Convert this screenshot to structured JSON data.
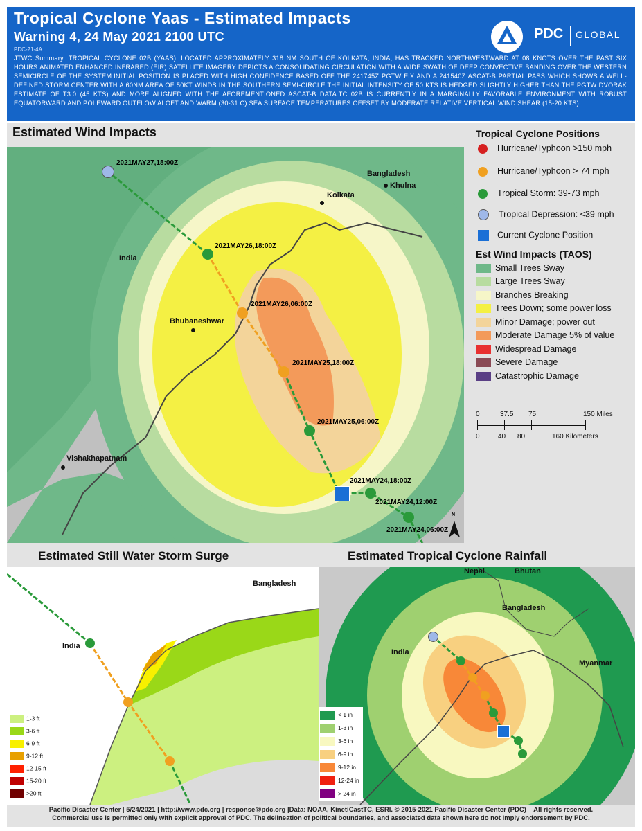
{
  "header": {
    "title": "Tropical Cyclone Yaas - Estimated Impacts",
    "subtitle": "Warning 4, 24 May 2021 2100 UTC",
    "doc_id": "PDC-21-4A",
    "summary": "JTWC Summary: TROPICAL CYCLONE 02B (YAAS), LOCATED APPROXIMATELY 318 NM SOUTH OF KOLKATA, INDIA, HAS TRACKED NORTHWESTWARD AT 08 KNOTS OVER THE PAST SIX HOURS.ANIMATED ENHANCED INFRARED (EIR) SATELLITE IMAGERY DEPICTS A CONSOLIDATING CIRCULATION WITH A WIDE SWATH OF DEEP CONVECTIVE BANDING OVER THE WESTERN SEMICIRCLE OF THE SYSTEM.INITIAL POSITION IS PLACED WITH HIGH CONFIDENCE BASED OFF THE 241745Z PGTW FIX AND A 241540Z ASCAT-B PARTIAL PASS WHICH SHOWS A WELL-DEFINED STORM CENTER WITH A 60NM AREA OF 50KT WINDS IN THE SOUTHERN SEMI-CIRCLE.THE INITIAL INTENSITY OF 50 KTS IS HEDGED SLIGHTLY HIGHER THAN THE PGTW DVORAK ESTIMATE OF T3.0 (45 KTS) AND MORE ALIGNED WITH THE AFOREMENTIONED ASCAT-B DATA.TC 02B IS CURRENTLY IN A MARGINALLY FAVORABLE ENVIRONMENT WITH ROBUST EQUATORWARD AND POLEWARD OUTFLOW ALOFT AND WARM (30-31 C) SEA SURFACE TEMPERATURES OFFSET BY MODERATE RELATIVE VERTICAL WIND SHEAR (15-20 KTS).",
    "logo": {
      "name": "PDC",
      "suffix": "GLOBAL"
    }
  },
  "wind_map": {
    "title": "Estimated Wind Impacts",
    "places": [
      "Bangladesh",
      "Khulna",
      "Kolkata",
      "India",
      "Bhubaneshwar",
      "Vishakhapatnam"
    ],
    "track_labels": [
      "2021MAY27,18:00Z",
      "2021MAY26,18:00Z",
      "2021MAY26,06:00Z",
      "2021MAY25,18:00Z",
      "2021MAY25,06:00Z",
      "2021MAY24,18:00Z",
      "2021MAY24,12:00Z",
      "2021MAY24,06:00Z"
    ],
    "north": "N"
  },
  "legend": {
    "positions_title": "Tropical Cyclone Positions",
    "positions": [
      {
        "label": "Hurricane/Typhoon >150 mph",
        "color": "#d62020"
      },
      {
        "label": "Hurricane/Typhoon > 74 mph",
        "color": "#f0a020"
      },
      {
        "label": "Tropical Storm: 39-73 mph",
        "color": "#2a9a3a"
      },
      {
        "label": "Tropical Depression: <39 mph",
        "color": "#9fb8e8"
      },
      {
        "label": "Current Cyclone Position",
        "color": "#1a6fd6"
      }
    ],
    "wind_title": "Est Wind Impacts (TAOS)",
    "wind": [
      {
        "label": "Small Trees Sway",
        "color": "#6fb889"
      },
      {
        "label": "Large Trees Sway",
        "color": "#b8dca0"
      },
      {
        "label": "Branches Breaking",
        "color": "#f6f6c8"
      },
      {
        "label": "Trees Down; some power loss",
        "color": "#f4f044"
      },
      {
        "label": "Minor Damage; power out",
        "color": "#f3d49a"
      },
      {
        "label": "Moderate Damage 5% of value",
        "color": "#f39a5a"
      },
      {
        "label": "Widespread Damage",
        "color": "#e83030"
      },
      {
        "label": "Severe Damage",
        "color": "#8a4a55"
      },
      {
        "label": "Catastrophic Damage",
        "color": "#5a3f85"
      }
    ],
    "scale_miles": [
      "0",
      "37.5",
      "75",
      "150 Miles"
    ],
    "scale_km": [
      "0",
      "40",
      "80",
      "160 Kilometers"
    ]
  },
  "surge_map": {
    "title": "Estimated Still Water Storm Surge",
    "places": [
      "Bangladesh",
      "India"
    ],
    "legend": [
      {
        "label": "1-3 ft",
        "color": "#ccf080"
      },
      {
        "label": "3-6 ft",
        "color": "#9ad818"
      },
      {
        "label": "6-9 ft",
        "color": "#f8f000"
      },
      {
        "label": "9-12 ft",
        "color": "#e8a000"
      },
      {
        "label": "12-15 ft",
        "color": "#ff2000"
      },
      {
        "label": "15-20 ft",
        "color": "#c00000"
      },
      {
        "label": ">20 ft",
        "color": "#700000"
      }
    ]
  },
  "rain_map": {
    "title": "Estimated Tropical Cyclone Rainfall",
    "places": [
      "Nepal",
      "Bhutan",
      "Bangladesh",
      "India",
      "Myanmar"
    ],
    "legend": [
      {
        "label": "< 1 in",
        "color": "#1f9a50"
      },
      {
        "label": "1-3 in",
        "color": "#9fd070"
      },
      {
        "label": "3-6 in",
        "color": "#f8f8c0"
      },
      {
        "label": "6-9 in",
        "color": "#f8d080"
      },
      {
        "label": "9-12 in",
        "color": "#f88838"
      },
      {
        "label": "12-24 in",
        "color": "#f02010"
      },
      {
        "label": "> 24 in",
        "color": "#800080"
      }
    ]
  },
  "footer": {
    "line1": "Pacific Disaster Center | 5/24/2021 | http://www.pdc.org | response@pdc.org |Data: NOAA, KinetiCastTC, ESRI.  © 2015-2021 Pacific Disaster Center (PDC) – All rights reserved.",
    "line2": "Commercial use is permitted only with explicit approval of PDC.  The delineation of political boundaries, and associated data shown here do not imply endorsement by PDC."
  }
}
